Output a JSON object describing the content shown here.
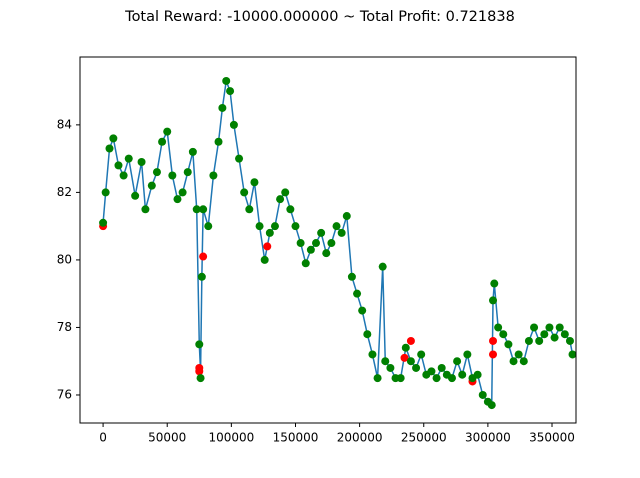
{
  "chart_data": {
    "type": "line",
    "title": "Total Reward: -10000.000000 ~ Total Profit: 0.721838",
    "xlim": [
      -18000,
      368700
    ],
    "ylim": [
      75.17,
      86.01
    ],
    "xticks": [
      0,
      50000,
      100000,
      150000,
      200000,
      250000,
      300000,
      350000
    ],
    "yticks": [
      76,
      78,
      80,
      82,
      84
    ],
    "series": [
      {
        "style": "line",
        "color": "#1f77b4",
        "x": [
          0,
          2000,
          5000,
          8000,
          12000,
          16000,
          20000,
          25000,
          30000,
          33000,
          38000,
          42000,
          46000,
          50000,
          54000,
          58000,
          62000,
          66000,
          70000,
          73000,
          75000,
          76000,
          77000,
          78000,
          82000,
          86000,
          90000,
          93000,
          96000,
          99000,
          102000,
          106000,
          110000,
          114000,
          118000,
          122000,
          126000,
          130000,
          134000,
          138000,
          142000,
          146000,
          150000,
          154000,
          158000,
          162000,
          166000,
          170000,
          174000,
          178000,
          182000,
          186000,
          190000,
          194000,
          198000,
          202000,
          206000,
          210000,
          214000,
          218000,
          220000,
          224000,
          228000,
          232000,
          236000,
          240000,
          244000,
          248000,
          252000,
          256000,
          260000,
          264000,
          268000,
          272000,
          276000,
          280000,
          284000,
          288000,
          292000,
          296000,
          300000,
          303000,
          304000,
          305000,
          308000,
          312000,
          316000,
          320000,
          324000,
          328000,
          332000,
          336000,
          340000,
          344000,
          348000,
          352000,
          356000,
          360000,
          364000,
          366000
        ],
        "values": [
          81.1,
          82,
          83.3,
          83.6,
          82.8,
          82.5,
          83,
          81.9,
          82.9,
          81.5,
          82.2,
          82.6,
          83.5,
          83.8,
          82.5,
          81.8,
          82,
          82.6,
          83.2,
          81.5,
          77.5,
          76.7,
          79.5,
          81.5,
          81,
          82.5,
          83.5,
          84.5,
          85.3,
          85,
          84,
          83,
          82,
          81.5,
          82.3,
          81,
          80,
          80.8,
          81,
          81.8,
          82,
          81.5,
          81,
          80.5,
          79.9,
          80.3,
          80.5,
          80.8,
          80.2,
          80.5,
          81,
          80.8,
          81.3,
          79.5,
          79,
          78.5,
          77.8,
          77.2,
          76.5,
          79.8,
          77,
          76.8,
          76.5,
          76.5,
          77.4,
          77,
          76.8,
          77.2,
          76.6,
          76.7,
          76.5,
          76.8,
          76.6,
          76.5,
          77,
          76.6,
          77.2,
          76.5,
          76.6,
          76,
          75.8,
          75.7,
          78.8,
          79.3,
          78,
          77.8,
          77.5,
          77,
          77.2,
          77,
          77.6,
          78,
          77.6,
          77.8,
          78,
          77.7,
          78,
          77.8,
          77.6,
          77.2
        ]
      },
      {
        "style": "scatter",
        "color": "#ff0000",
        "x": [
          0,
          75000,
          75000,
          78000,
          128000,
          235000,
          240000,
          288000,
          304000,
          304000
        ],
        "values": [
          81,
          76.8,
          76.7,
          80.1,
          80.4,
          77.1,
          77.6,
          76.4,
          77.6,
          77.2
        ]
      },
      {
        "style": "scatter",
        "color": "#008000",
        "x": [
          0,
          2000,
          5000,
          8000,
          12000,
          16000,
          20000,
          25000,
          30000,
          33000,
          38000,
          42000,
          46000,
          50000,
          54000,
          58000,
          62000,
          66000,
          70000,
          73000,
          75000,
          76000,
          77000,
          78000,
          82000,
          86000,
          90000,
          93000,
          96000,
          99000,
          102000,
          106000,
          110000,
          114000,
          118000,
          122000,
          126000,
          130000,
          134000,
          138000,
          142000,
          146000,
          150000,
          154000,
          158000,
          162000,
          166000,
          170000,
          174000,
          178000,
          182000,
          186000,
          190000,
          194000,
          198000,
          202000,
          206000,
          210000,
          214000,
          218000,
          220000,
          224000,
          228000,
          232000,
          236000,
          240000,
          244000,
          248000,
          252000,
          256000,
          260000,
          264000,
          268000,
          272000,
          276000,
          280000,
          284000,
          288000,
          292000,
          296000,
          300000,
          303000,
          304000,
          305000,
          308000,
          312000,
          316000,
          320000,
          324000,
          328000,
          332000,
          336000,
          340000,
          344000,
          348000,
          352000,
          356000,
          360000,
          364000,
          366000
        ],
        "values": [
          81.1,
          82,
          83.3,
          83.6,
          82.8,
          82.5,
          83,
          81.9,
          82.9,
          81.5,
          82.2,
          82.6,
          83.5,
          83.8,
          82.5,
          81.8,
          82,
          82.6,
          83.2,
          81.5,
          77.5,
          76.5,
          79.5,
          81.5,
          81,
          82.5,
          83.5,
          84.5,
          85.3,
          85,
          84,
          83,
          82,
          81.5,
          82.3,
          81,
          80,
          80.8,
          81,
          81.8,
          82,
          81.5,
          81,
          80.5,
          79.9,
          80.3,
          80.5,
          80.8,
          80.2,
          80.5,
          81,
          80.8,
          81.3,
          79.5,
          79,
          78.5,
          77.8,
          77.2,
          76.5,
          79.8,
          77,
          76.8,
          76.5,
          76.5,
          77.4,
          77,
          76.8,
          77.2,
          76.6,
          76.7,
          76.5,
          76.8,
          76.6,
          76.5,
          77,
          76.6,
          77.2,
          76.5,
          76.6,
          76,
          75.8,
          75.7,
          78.8,
          79.3,
          78,
          77.8,
          77.5,
          77,
          77.2,
          77,
          77.6,
          78,
          77.6,
          77.8,
          78,
          77.7,
          78,
          77.8,
          77.6,
          77.2
        ]
      }
    ]
  }
}
